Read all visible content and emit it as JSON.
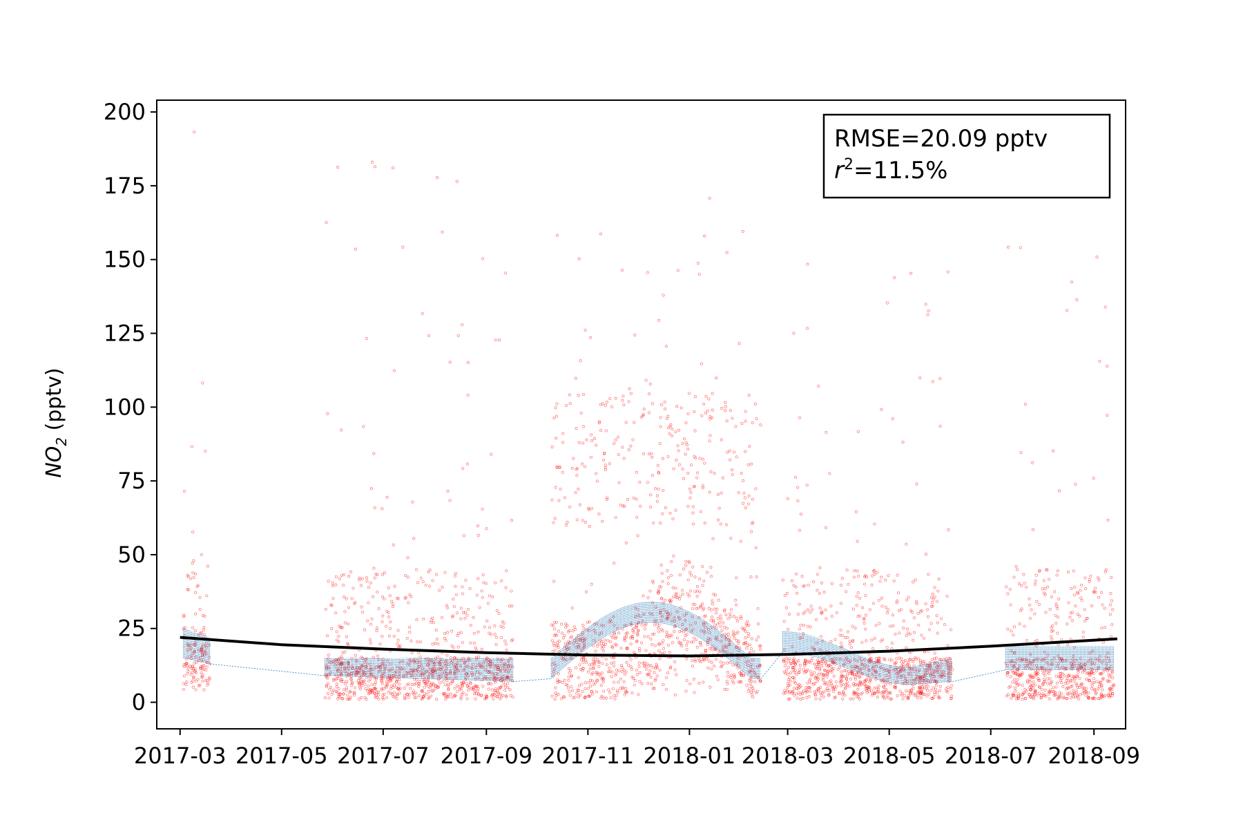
{
  "chart_data": {
    "type": "scatter",
    "xlabel": "",
    "ylabel": {
      "prefix": "NO",
      "subscript": "2",
      "suffix": " (pptv)"
    },
    "x_axis": {
      "type": "date",
      "range": [
        "2017-02-15",
        "2018-09-20"
      ],
      "tick_labels": [
        "2017-03",
        "2017-05",
        "2017-07",
        "2017-09",
        "2017-11",
        "2018-01",
        "2018-03",
        "2018-05",
        "2018-07",
        "2018-09"
      ],
      "tick_dates": [
        "2017-03-01",
        "2017-05-01",
        "2017-07-01",
        "2017-09-01",
        "2017-11-01",
        "2018-01-01",
        "2018-03-01",
        "2018-05-01",
        "2018-07-01",
        "2018-09-01"
      ]
    },
    "y_axis": {
      "range": [
        -9,
        204
      ],
      "ticks": [
        0,
        25,
        50,
        75,
        100,
        125,
        150,
        175,
        200
      ]
    },
    "grid": false,
    "annotation": {
      "placement": "top-right",
      "rmse_text": "RMSE=20.09 pptv",
      "r2_prefix": "r",
      "r2_superscript": "2",
      "r2_value": "=11.5%"
    },
    "series": [
      {
        "role": "observations",
        "style": "hollow circles, tiny",
        "color": "#ff0000",
        "observation_periods": [
          {
            "start": "2017-03-03",
            "end": "2017-03-19",
            "typical": [
              4,
              20
            ],
            "max": 195
          },
          {
            "start": "2017-05-27",
            "end": "2017-09-17",
            "typical": [
              1,
              15
            ],
            "max": 185
          },
          {
            "start": "2017-10-10",
            "end": "2018-02-13",
            "typical": [
              1,
              60
            ],
            "max": 172
          },
          {
            "start": "2018-02-26",
            "end": "2018-06-08",
            "typical": [
              1,
              15
            ],
            "max": 150
          },
          {
            "start": "2018-07-10",
            "end": "2018-09-13",
            "typical": [
              1,
              15
            ],
            "max": 163
          }
        ]
      },
      {
        "role": "model",
        "style": "dense thin dotted vertical lines",
        "color": "#1f77b4",
        "segments": [
          {
            "start": "2017-03-03",
            "end": "2017-03-19",
            "low_start": 15,
            "low_end": 13,
            "high_start": 25,
            "high_end": 22
          },
          {
            "start": "2017-05-27",
            "end": "2017-09-17",
            "low_start": 9,
            "low_end": 7,
            "high_start": 15,
            "high_end": 15
          },
          {
            "start": "2017-10-10",
            "end": "2018-02-13",
            "low_start": 8,
            "low_peak": 27,
            "high_start": 15,
            "high_peak": 34
          },
          {
            "start": "2018-02-26",
            "end": "2018-06-08",
            "low_start": 17,
            "low_trough": 6,
            "low_end": 7,
            "high_start": 24,
            "high_trough": 12,
            "high_end": 15
          },
          {
            "start": "2018-07-10",
            "end": "2018-09-13",
            "low_start": 11,
            "low_end": 11,
            "high_start": 19,
            "high_end": 19
          }
        ]
      },
      {
        "role": "trend",
        "style": "thick solid line",
        "color": "#000000",
        "points": [
          {
            "x": "2017-03-01",
            "y": 22
          },
          {
            "x": "2017-05-01",
            "y": 19.5
          },
          {
            "x": "2017-07-01",
            "y": 18
          },
          {
            "x": "2017-09-01",
            "y": 16.8
          },
          {
            "x": "2017-11-01",
            "y": 16
          },
          {
            "x": "2018-01-01",
            "y": 15.7
          },
          {
            "x": "2018-03-01",
            "y": 16.2
          },
          {
            "x": "2018-05-01",
            "y": 17.3
          },
          {
            "x": "2018-07-01",
            "y": 19
          },
          {
            "x": "2018-09-15",
            "y": 21.5
          }
        ]
      }
    ]
  }
}
